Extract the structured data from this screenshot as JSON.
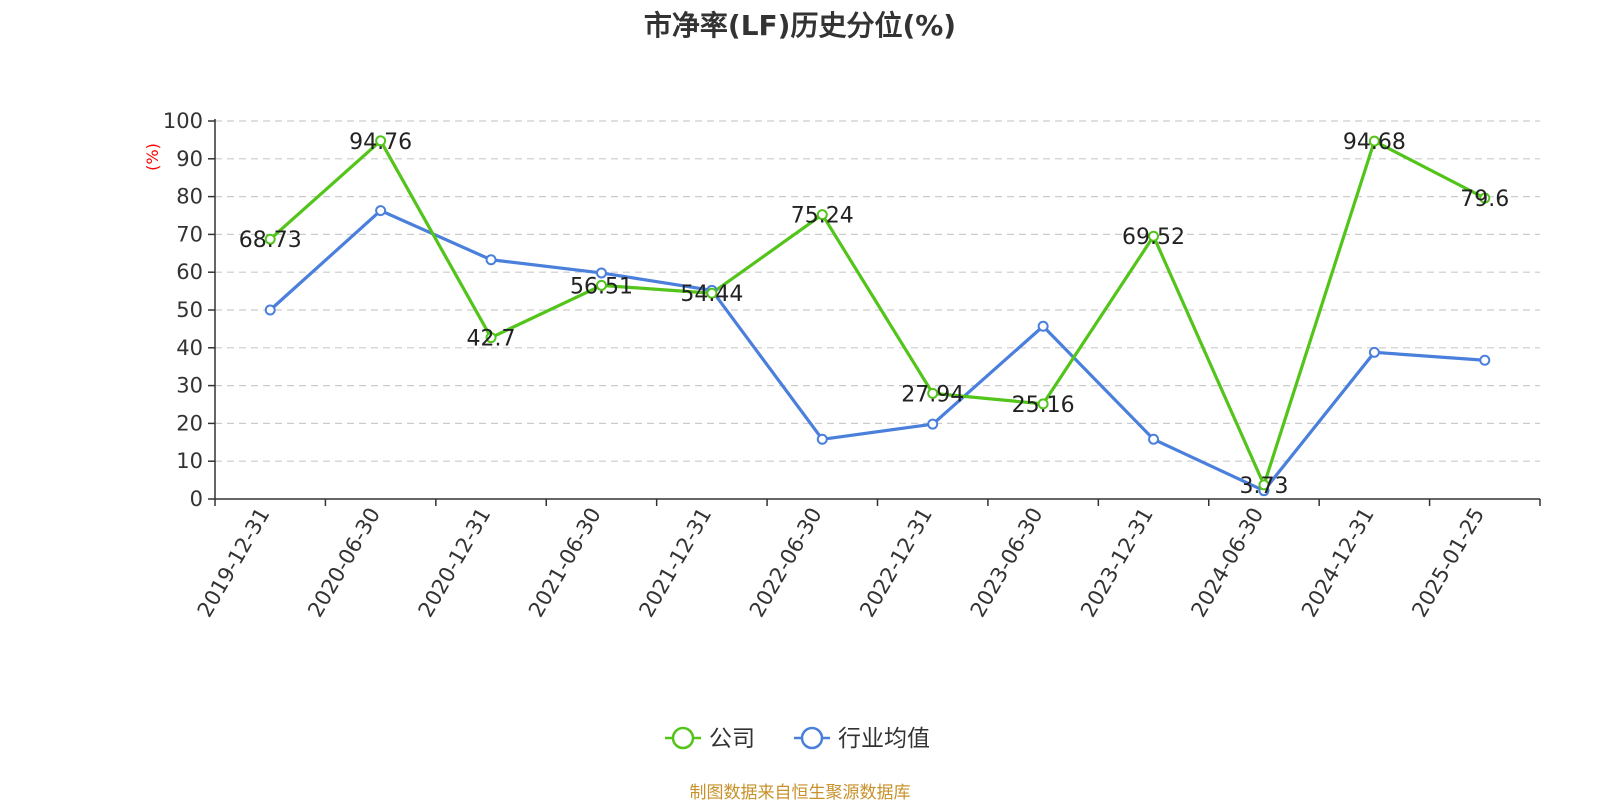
{
  "chart_data": {
    "type": "line",
    "title": "市净率(LF)历史分位(%)",
    "ylabel": "(%)",
    "ylim": [
      0,
      100
    ],
    "yticks": [
      0,
      10,
      20,
      30,
      40,
      50,
      60,
      70,
      80,
      90,
      100
    ],
    "grid": true,
    "legend_position": "bottom-center",
    "categories": [
      "2019-12-31",
      "2020-06-30",
      "2020-12-31",
      "2021-06-30",
      "2021-12-31",
      "2022-06-30",
      "2022-12-31",
      "2023-06-30",
      "2023-12-31",
      "2024-06-30",
      "2024-12-31",
      "2025-01-25"
    ],
    "series": [
      {
        "name": "公司",
        "color": "#52c41a",
        "values": [
          68.73,
          94.76,
          42.7,
          56.51,
          54.44,
          75.24,
          27.94,
          25.16,
          69.52,
          3.73,
          94.68,
          79.6
        ],
        "labels": [
          "68.73",
          "94.76",
          "42.7",
          "56.51",
          "54.44",
          "75.24",
          "27.94",
          "25.16",
          "69.52",
          "3.73",
          "94.68",
          "79.6"
        ]
      },
      {
        "name": "行业均值",
        "color": "#4a7fdc",
        "values": [
          50.0,
          76.3,
          63.3,
          59.8,
          55.2,
          15.8,
          19.8,
          45.7,
          15.8,
          2.2,
          38.8,
          36.7
        ]
      }
    ]
  },
  "footer": "制图数据来自恒生聚源数据库"
}
